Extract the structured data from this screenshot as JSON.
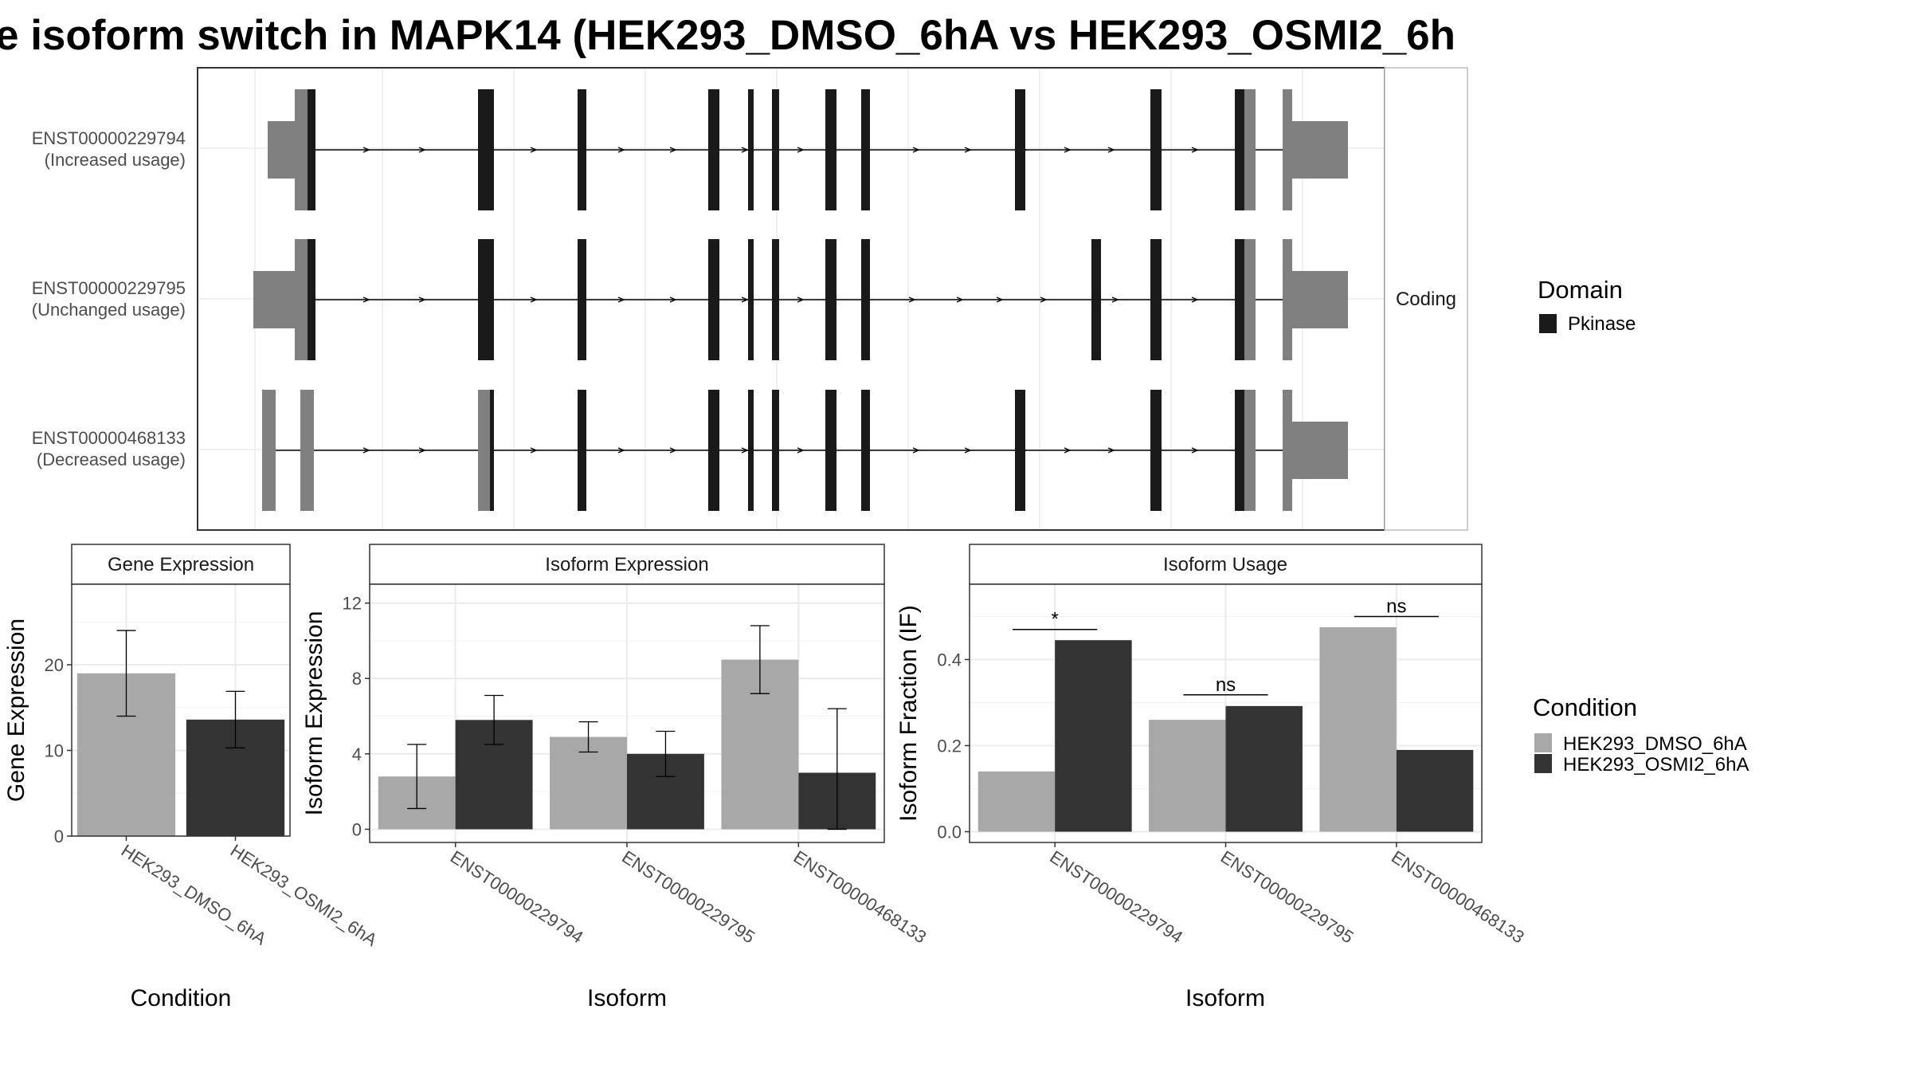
{
  "title": "e isoform switch in MAPK14 (HEK293_DMSO_6hA vs HEK293_OSMI2_6h",
  "colors": {
    "dmso": "#a8a8a8",
    "osmi": "#333333",
    "domain": "#1a1a1a",
    "utr": "#808080",
    "grid": "#ebebeb",
    "panel_border": "#333333",
    "strip_border": "#bdbdbd"
  },
  "transcripts": [
    {
      "id": "ENST00000229794",
      "status": "(Increased usage)"
    },
    {
      "id": "ENST00000229795",
      "status": "(Unchanged usage)"
    },
    {
      "id": "ENST00000468133",
      "status": "(Decreased usage)"
    }
  ],
  "structure_strip": "Coding",
  "domain_legend": {
    "title": "Domain",
    "items": [
      {
        "label": "Pkinase",
        "color": "#1a1a1a"
      }
    ]
  },
  "condition_legend": {
    "title": "Condition",
    "items": [
      {
        "label": "HEK293_DMSO_6hA",
        "color": "#a8a8a8"
      },
      {
        "label": "HEK293_OSMI2_6hA",
        "color": "#333333"
      }
    ]
  },
  "chart_data": [
    {
      "type": "bar",
      "title": "Gene Expression",
      "xlabel": "Condition",
      "ylabel": "Gene Expression",
      "categories": [
        "HEK293_DMSO_6hA",
        "HEK293_OSMI2_6hA"
      ],
      "values": [
        19.0,
        13.6
      ],
      "errors": [
        [
          14.0,
          24.0
        ],
        [
          10.3,
          16.9
        ]
      ],
      "yticks": [
        0,
        10,
        20
      ],
      "ylim": [
        0,
        29.4
      ],
      "grid": true
    },
    {
      "type": "bar",
      "title": "Isoform Expression",
      "xlabel": "Isoform",
      "ylabel": "Isoform Expression",
      "categories": [
        "ENST00000229794",
        "ENST00000229795",
        "ENST00000468133"
      ],
      "series": [
        {
          "name": "HEK293_DMSO_6hA",
          "values": [
            2.8,
            4.9,
            9.0
          ],
          "errors": [
            [
              1.1,
              4.5
            ],
            [
              4.1,
              5.7
            ],
            [
              7.2,
              10.8
            ]
          ]
        },
        {
          "name": "HEK293_OSMI2_6hA",
          "values": [
            5.8,
            4.0,
            3.0
          ],
          "errors": [
            [
              4.5,
              7.1
            ],
            [
              2.8,
              5.2
            ],
            [
              0.0,
              6.4
            ]
          ]
        }
      ],
      "yticks": [
        0,
        4,
        8,
        12
      ],
      "ylim": [
        -0.7,
        13
      ],
      "grid": true
    },
    {
      "type": "bar",
      "title": "Isoform Usage",
      "xlabel": "Isoform",
      "ylabel": "Isoform Fraction (IF)",
      "categories": [
        "ENST00000229794",
        "ENST00000229795",
        "ENST00000468133"
      ],
      "series": [
        {
          "name": "HEK293_DMSO_6hA",
          "values": [
            0.14,
            0.26,
            0.475
          ]
        },
        {
          "name": "HEK293_OSMI2_6hA",
          "values": [
            0.445,
            0.292,
            0.19
          ]
        }
      ],
      "significance": [
        "*",
        "ns",
        "ns"
      ],
      "sig_y": [
        0.47,
        0.318,
        0.5
      ],
      "yticks": [
        "0.0",
        "0.2",
        "0.4"
      ],
      "ylim": [
        -0.025,
        0.575
      ],
      "grid": true
    }
  ]
}
